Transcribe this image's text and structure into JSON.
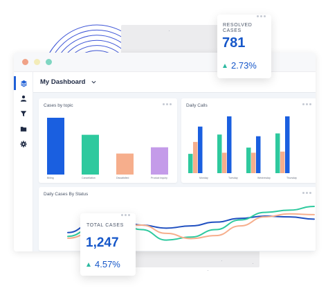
{
  "window": {
    "traffic_lights": [
      "#f0a287",
      "#f3ecb9",
      "#7fd6c2"
    ]
  },
  "sidebar": {
    "items": [
      {
        "icon": "layers-icon",
        "active": true
      },
      {
        "icon": "user-icon",
        "active": false
      },
      {
        "icon": "filter-icon",
        "active": false
      },
      {
        "icon": "folder-icon",
        "active": false
      },
      {
        "icon": "gear-icon",
        "active": false
      }
    ]
  },
  "dashboard": {
    "title": "My Dashboard"
  },
  "cases_by_topic": {
    "title": "Cases by topic",
    "chart_data": {
      "type": "bar",
      "categories": [
        "Billing",
        "Cancellation",
        "Dissatisfied",
        "Product inquiry"
      ],
      "values": [
        100,
        70,
        37,
        48
      ],
      "colors": [
        "#1a5fe0",
        "#2ec99e",
        "#f6ae8c",
        "#c49be9"
      ]
    }
  },
  "daily_calls": {
    "title": "Daily Calls",
    "chart_data": {
      "type": "bar",
      "categories": [
        "Monday",
        "Tuesday",
        "Wednesday",
        "Thursday"
      ],
      "series": [
        {
          "values": [
            34,
            68,
            45,
            70
          ],
          "color": "#2ec99e"
        },
        {
          "values": [
            55,
            36,
            36,
            38
          ],
          "color": "#f6ae8c"
        },
        {
          "values": [
            82,
            100,
            65,
            100
          ],
          "color": "#1a5fe0"
        }
      ]
    }
  },
  "daily_cases_by_status": {
    "title": "Daily Cases By Status",
    "chart_data": {
      "type": "line",
      "series": [
        {
          "color": "#1f4fc0",
          "values": [
            30,
            55,
            70,
            50,
            42,
            48,
            58,
            68,
            74,
            72,
            66
          ]
        },
        {
          "color": "#2ec99e",
          "values": [
            20,
            42,
            60,
            38,
            10,
            18,
            38,
            64,
            84,
            90,
            100
          ]
        },
        {
          "color": "#f6ae8c",
          "values": [
            15,
            30,
            48,
            50,
            28,
            14,
            22,
            48,
            72,
            80,
            78
          ]
        }
      ]
    }
  },
  "resolved_cases": {
    "label": "RESOLVED CASES",
    "value": "781",
    "change": "2.73%"
  },
  "total_cases": {
    "label": "TOTAL CASES",
    "value": "1,247",
    "change": "4.57%"
  }
}
